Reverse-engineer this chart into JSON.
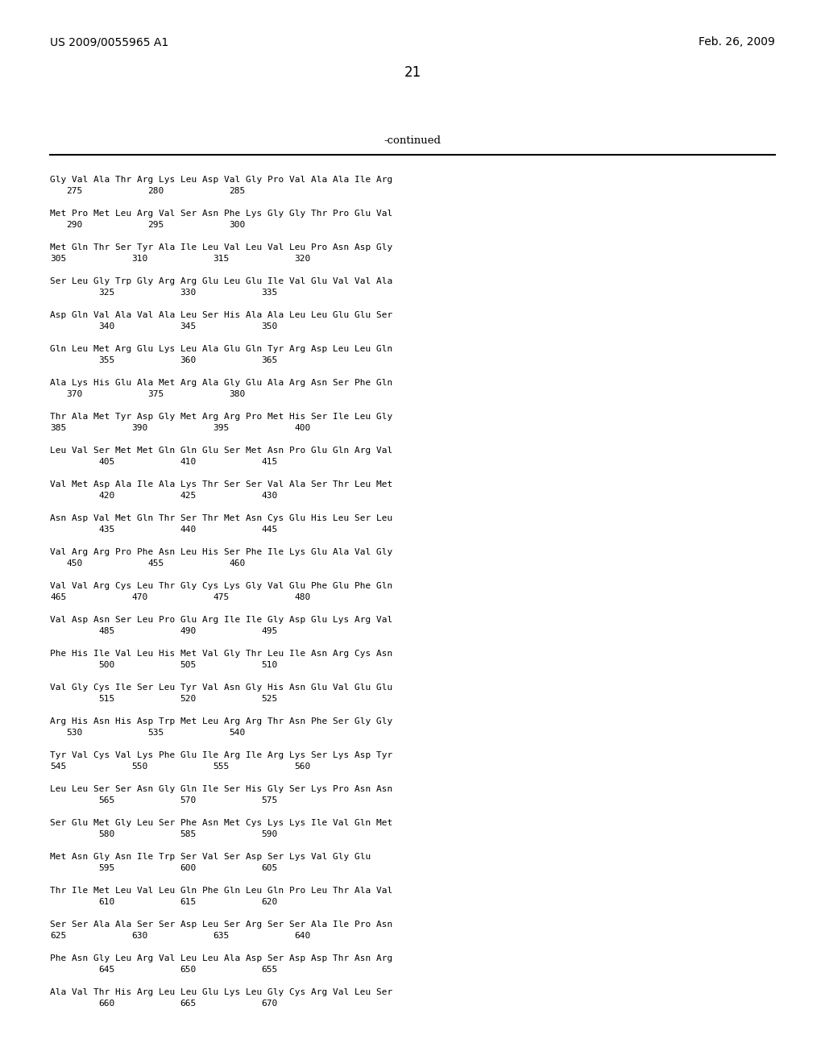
{
  "header_left": "US 2009/0055965 A1",
  "header_right": "Feb. 26, 2009",
  "page_number": "21",
  "continued_label": "-continued",
  "background_color": "#ffffff",
  "text_color": "#000000",
  "sequences": [
    {
      "seq": "Gly Val Ala Thr Arg Lys Leu Asp Val Gly Pro Val Ala Ala Ile Arg",
      "nums": [
        [
          "275",
          1
        ],
        [
          "280",
          6
        ],
        [
          "285",
          11
        ]
      ]
    },
    {
      "seq": "Met Pro Met Leu Arg Val Ser Asn Phe Lys Gly Gly Thr Pro Glu Val",
      "nums": [
        [
          "290",
          1
        ],
        [
          "295",
          6
        ],
        [
          "300",
          11
        ]
      ]
    },
    {
      "seq": "Met Gln Thr Ser Tyr Ala Ile Leu Val Leu Val Leu Pro Asn Asp Gly",
      "nums": [
        [
          "305",
          0
        ],
        [
          "310",
          5
        ],
        [
          "315",
          10
        ],
        [
          "320",
          15
        ]
      ]
    },
    {
      "seq": "Ser Leu Gly Trp Gly Arg Arg Glu Leu Glu Ile Val Glu Val Val Ala",
      "nums": [
        [
          "325",
          3
        ],
        [
          "330",
          8
        ],
        [
          "335",
          13
        ]
      ]
    },
    {
      "seq": "Asp Gln Val Ala Val Ala Leu Ser His Ala Ala Leu Leu Glu Glu Ser",
      "nums": [
        [
          "340",
          3
        ],
        [
          "345",
          8
        ],
        [
          "350",
          13
        ]
      ]
    },
    {
      "seq": "Gln Leu Met Arg Glu Lys Leu Ala Glu Gln Tyr Arg Asp Leu Leu Gln",
      "nums": [
        [
          "355",
          3
        ],
        [
          "360",
          8
        ],
        [
          "365",
          13
        ]
      ]
    },
    {
      "seq": "Ala Lys His Glu Ala Met Arg Ala Gly Glu Ala Arg Asn Ser Phe Gln",
      "nums": [
        [
          "370",
          1
        ],
        [
          "375",
          6
        ],
        [
          "380",
          11
        ]
      ]
    },
    {
      "seq": "Thr Ala Met Tyr Asp Gly Met Arg Arg Pro Met His Ser Ile Leu Gly",
      "nums": [
        [
          "385",
          0
        ],
        [
          "390",
          5
        ],
        [
          "395",
          10
        ],
        [
          "400",
          15
        ]
      ]
    },
    {
      "seq": "Leu Val Ser Met Met Gln Gln Glu Ser Met Asn Pro Glu Gln Arg Val",
      "nums": [
        [
          "405",
          3
        ],
        [
          "410",
          8
        ],
        [
          "415",
          13
        ]
      ]
    },
    {
      "seq": "Val Met Asp Ala Ile Ala Lys Thr Ser Ser Val Ala Ser Thr Leu Met",
      "nums": [
        [
          "420",
          3
        ],
        [
          "425",
          8
        ],
        [
          "430",
          13
        ]
      ]
    },
    {
      "seq": "Asn Asp Val Met Gln Thr Ser Thr Met Asn Cys Glu His Leu Ser Leu",
      "nums": [
        [
          "435",
          3
        ],
        [
          "440",
          8
        ],
        [
          "445",
          13
        ]
      ]
    },
    {
      "seq": "Val Arg Arg Pro Phe Asn Leu His Ser Phe Ile Lys Glu Ala Val Gly",
      "nums": [
        [
          "450",
          1
        ],
        [
          "455",
          6
        ],
        [
          "460",
          11
        ]
      ]
    },
    {
      "seq": "Val Val Arg Cys Leu Thr Gly Cys Lys Gly Val Glu Phe Glu Phe Gln",
      "nums": [
        [
          "465",
          0
        ],
        [
          "470",
          5
        ],
        [
          "475",
          10
        ],
        [
          "480",
          15
        ]
      ]
    },
    {
      "seq": "Val Asp Asn Ser Leu Pro Glu Arg Ile Ile Gly Asp Glu Lys Arg Val",
      "nums": [
        [
          "485",
          3
        ],
        [
          "490",
          8
        ],
        [
          "495",
          13
        ]
      ]
    },
    {
      "seq": "Phe His Ile Val Leu His Met Val Gly Thr Leu Ile Asn Arg Cys Asn",
      "nums": [
        [
          "500",
          3
        ],
        [
          "505",
          8
        ],
        [
          "510",
          13
        ]
      ]
    },
    {
      "seq": "Val Gly Cys Ile Ser Leu Tyr Val Asn Gly His Asn Glu Val Glu Glu",
      "nums": [
        [
          "515",
          3
        ],
        [
          "520",
          8
        ],
        [
          "525",
          13
        ]
      ]
    },
    {
      "seq": "Arg His Asn His Asp Trp Met Leu Arg Arg Thr Asn Phe Ser Gly Gly",
      "nums": [
        [
          "530",
          1
        ],
        [
          "535",
          6
        ],
        [
          "540",
          11
        ]
      ]
    },
    {
      "seq": "Tyr Val Cys Val Lys Phe Glu Ile Arg Ile Arg Lys Ser Lys Asp Tyr",
      "nums": [
        [
          "545",
          0
        ],
        [
          "550",
          5
        ],
        [
          "555",
          10
        ],
        [
          "560",
          15
        ]
      ]
    },
    {
      "seq": "Leu Leu Ser Ser Asn Gly Gln Ile Ser His Gly Ser Lys Pro Asn Asn",
      "nums": [
        [
          "565",
          3
        ],
        [
          "570",
          8
        ],
        [
          "575",
          13
        ]
      ]
    },
    {
      "seq": "Ser Glu Met Gly Leu Ser Phe Asn Met Cys Lys Lys Ile Val Gln Met",
      "nums": [
        [
          "580",
          3
        ],
        [
          "585",
          8
        ],
        [
          "590",
          13
        ]
      ]
    },
    {
      "seq": "Met Asn Gly Asn Ile Trp Ser Val Ser Asp Ser Lys Val Gly Glu",
      "nums": [
        [
          "595",
          3
        ],
        [
          "600",
          8
        ],
        [
          "605",
          13
        ]
      ]
    },
    {
      "seq": "Thr Ile Met Leu Val Leu Gln Phe Gln Leu Gln Pro Leu Thr Ala Val",
      "nums": [
        [
          "610",
          3
        ],
        [
          "615",
          8
        ],
        [
          "620",
          13
        ]
      ]
    },
    {
      "seq": "Ser Ser Ala Ala Ser Ser Asp Leu Ser Arg Ser Ser Ala Ile Pro Asn",
      "nums": [
        [
          "625",
          0
        ],
        [
          "630",
          5
        ],
        [
          "635",
          10
        ],
        [
          "640",
          15
        ]
      ]
    },
    {
      "seq": "Phe Asn Gly Leu Arg Val Leu Leu Ala Asp Ser Asp Asp Thr Asn Arg",
      "nums": [
        [
          "645",
          3
        ],
        [
          "650",
          8
        ],
        [
          "655",
          13
        ]
      ]
    },
    {
      "seq": "Ala Val Thr His Arg Leu Leu Glu Lys Leu Gly Cys Arg Val Leu Ser",
      "nums": [
        [
          "660",
          3
        ],
        [
          "665",
          8
        ],
        [
          "670",
          13
        ]
      ]
    }
  ]
}
